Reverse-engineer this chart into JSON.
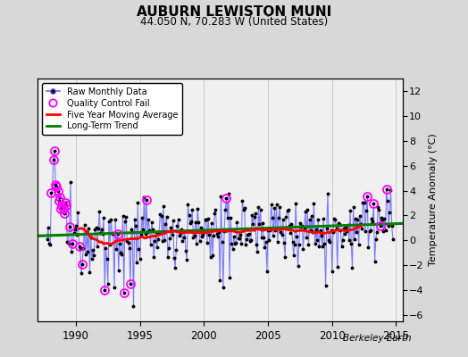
{
  "title": "AUBURN LEWISTON MUNI",
  "subtitle": "44.050 N, 70.283 W (United States)",
  "ylabel_right": "Temperature Anomaly (°C)",
  "watermark": "Berkeley Earth",
  "xlim": [
    1987.0,
    2015.5
  ],
  "ylim": [
    -6.5,
    13.0
  ],
  "yticks": [
    -6,
    -4,
    -2,
    0,
    2,
    4,
    6,
    8,
    10,
    12
  ],
  "xticks": [
    1990,
    1995,
    2000,
    2005,
    2010,
    2015
  ],
  "bg_outer": "#d8d8d8",
  "plot_bg_color": "#f0f0f0",
  "grid_color": "#cccccc",
  "raw_line_color": "#6666ff",
  "raw_dot_color": "black",
  "qc_color": "magenta",
  "moving_avg_color": "red",
  "trend_color": "green",
  "trend_slope": 0.035,
  "trend_intercept": 0.85,
  "trend_x_start": 1987.0,
  "trend_x_end": 2015.5
}
